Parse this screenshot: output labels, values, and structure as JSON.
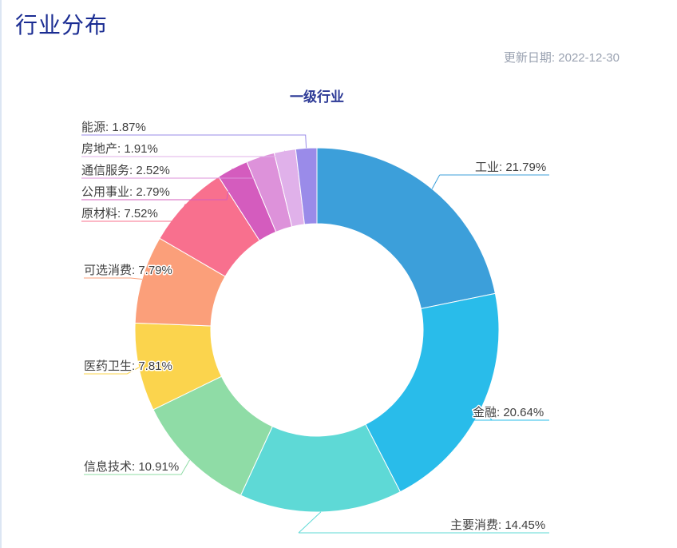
{
  "page": {
    "title": "行业分布",
    "update_date": "更新日期: 2022-12-30"
  },
  "chart_data": {
    "type": "pie",
    "donut": true,
    "title": "一级行业",
    "label_format": "{name}: {value}%",
    "legend_position": "none",
    "start_angle": "top, clockwise",
    "series": [
      {
        "name": "工业",
        "value": 21.79,
        "color": "#3C9FDA"
      },
      {
        "name": "金融",
        "value": 20.64,
        "color": "#29BCEA"
      },
      {
        "name": "主要消费",
        "value": 14.45,
        "color": "#5ED9D6"
      },
      {
        "name": "信息技术",
        "value": 10.91,
        "color": "#8FDCA6"
      },
      {
        "name": "医药卫生",
        "value": 7.81,
        "color": "#FBD44D"
      },
      {
        "name": "可选消费",
        "value": 7.79,
        "color": "#FB9F7A"
      },
      {
        "name": "原材料",
        "value": 7.52,
        "color": "#F8708E"
      },
      {
        "name": "公用事业",
        "value": 2.79,
        "color": "#D45CBE"
      },
      {
        "name": "通信服务",
        "value": 2.52,
        "color": "#DD92DA"
      },
      {
        "name": "房地产",
        "value": 1.91,
        "color": "#E0B1EA"
      },
      {
        "name": "能源",
        "value": 1.87,
        "color": "#9A8BE9"
      }
    ],
    "colors": {
      "page_title": "#1a2c92",
      "chart_title": "#2d3a96",
      "date_text": "#9aa2b1",
      "label_text": "#404040"
    }
  }
}
